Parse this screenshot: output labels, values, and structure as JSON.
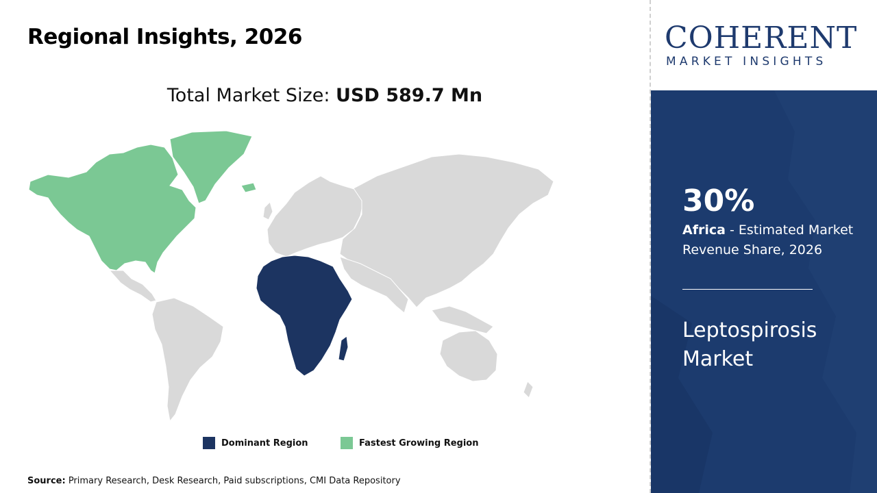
{
  "header": {
    "title": "Regional Insights, 2026"
  },
  "total_market": {
    "label": "Total Market Size: ",
    "value": "USD 589.7 Mn"
  },
  "map": {
    "dominant_region": "Africa",
    "fastest_growing_region": "North America",
    "colors": {
      "dominant": "#1c3461",
      "fastest": "#7bc894",
      "other": "#d9d9d9"
    }
  },
  "legend": [
    {
      "label": "Dominant Region",
      "color": "#1c3461"
    },
    {
      "label": "Fastest Growing Region",
      "color": "#7bc894"
    }
  ],
  "source": {
    "label": "Source:",
    "text": " Primary Research, Desk Research, Paid subscriptions, CMI Data Repository"
  },
  "logo": {
    "main": "COHERENT",
    "sub": "MARKET INSIGHTS"
  },
  "panel": {
    "percent": "30%",
    "region": "Africa",
    "description": " - Estimated Market Revenue Share, 2026",
    "market_name": "Leptospirosis Market"
  },
  "colors": {
    "panel_bg": "#1c3b6e",
    "brand": "#1e3a6e"
  }
}
